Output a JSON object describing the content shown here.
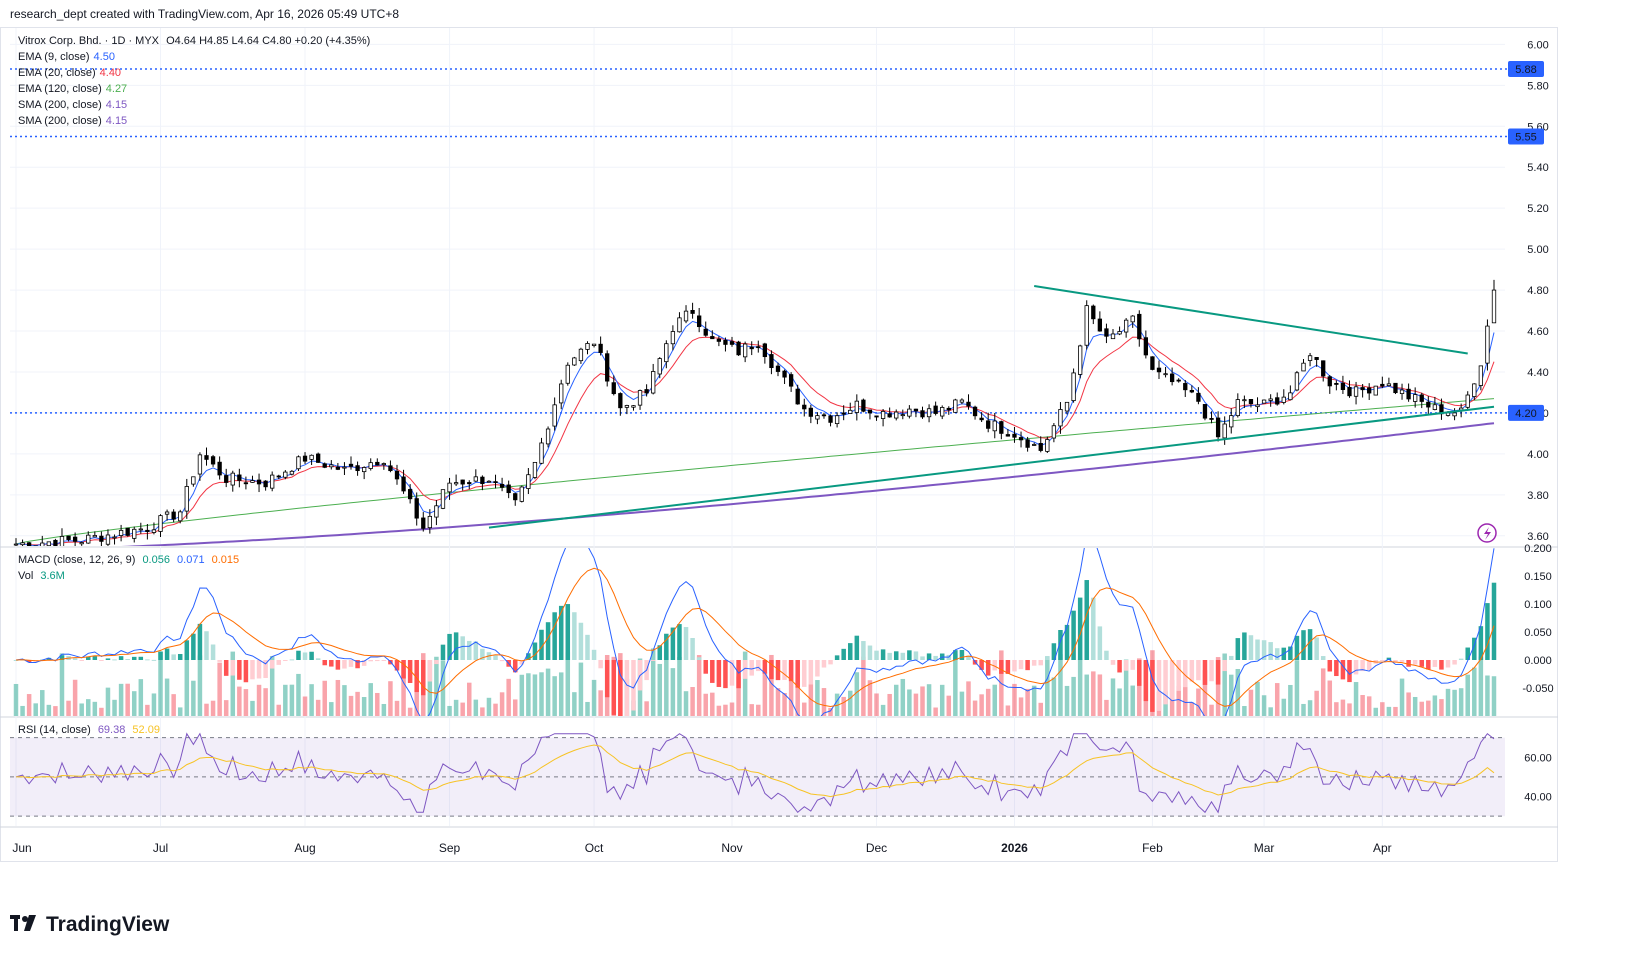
{
  "header": {
    "text": "research_dept created with TradingView.com, Apr 16, 2026 05:49 UTC+8"
  },
  "legend": {
    "symbol": "Vitrox Corp. Bhd. · 1D · MYX",
    "ohlc": "O4.64 H4.85 L4.64 C4.80 +0.20 (+4.35%)",
    "items": [
      {
        "label": "EMA (9, close)",
        "value": "4.50",
        "color": "#2962ff"
      },
      {
        "label": "EMA (20, close)",
        "value": "4.40",
        "color": "#f23645"
      },
      {
        "label": "EMA (120, close)",
        "value": "4.27",
        "color": "#4caf50"
      },
      {
        "label": "SMA (200, close)",
        "value": "4.15",
        "color": "#7e57c2"
      },
      {
        "label": "SMA (200, close)",
        "value": "4.15",
        "color": "#7e57c2"
      }
    ]
  },
  "macd_legend": {
    "label": "MACD (close, 12, 26, 9)",
    "values": [
      "0.056",
      "0.071",
      "0.015"
    ],
    "colors": [
      "#089981",
      "#2962ff",
      "#ff6d00"
    ]
  },
  "vol_legend": {
    "label": "Vol",
    "value": "3.6M"
  },
  "rsi_legend": {
    "label": "RSI (14, close)",
    "values": [
      "69.38",
      "52.09"
    ],
    "colors": [
      "#7e57c2",
      "#f7c325"
    ]
  },
  "footer": {
    "brand": "TradingView"
  },
  "price_levels": [
    {
      "value": 5.88,
      "label": "5.88"
    },
    {
      "value": 5.55,
      "label": "5.55"
    },
    {
      "value": 4.2,
      "label": "4.20"
    }
  ],
  "chart_data": [
    {
      "type": "candlestick",
      "title": "Vitrox Corp. Bhd. · 1D · MYX",
      "ylim": [
        3.55,
        6.08
      ],
      "y_ticks": [
        "6.00",
        "5.80",
        "5.60",
        "5.40",
        "5.20",
        "5.00",
        "4.80",
        "4.60",
        "4.40",
        "4.20",
        "4.00",
        "3.80",
        "3.60"
      ],
      "x_labels": [
        "Jun",
        "Jul",
        "Aug",
        "Sep",
        "Oct",
        "Nov",
        "Dec",
        "2026",
        "Feb",
        "Mar",
        "Apr"
      ],
      "anchors": [
        [
          0,
          3.56
        ],
        [
          10,
          3.58
        ],
        [
          20,
          3.64
        ],
        [
          25,
          3.72
        ],
        [
          28,
          4.0
        ],
        [
          32,
          3.88
        ],
        [
          38,
          3.86
        ],
        [
          44,
          3.98
        ],
        [
          50,
          3.92
        ],
        [
          56,
          3.98
        ],
        [
          62,
          3.64
        ],
        [
          66,
          3.86
        ],
        [
          72,
          3.88
        ],
        [
          76,
          3.75
        ],
        [
          79,
          3.95
        ],
        [
          84,
          4.45
        ],
        [
          88,
          4.55
        ],
        [
          92,
          4.22
        ],
        [
          96,
          4.3
        ],
        [
          100,
          4.62
        ],
        [
          103,
          4.7
        ],
        [
          106,
          4.55
        ],
        [
          110,
          4.5
        ],
        [
          113,
          4.55
        ],
        [
          116,
          4.4
        ],
        [
          120,
          4.22
        ],
        [
          124,
          4.18
        ],
        [
          128,
          4.24
        ],
        [
          132,
          4.2
        ],
        [
          136,
          4.22
        ],
        [
          140,
          4.2
        ],
        [
          144,
          4.25
        ],
        [
          148,
          4.15
        ],
        [
          152,
          4.1
        ],
        [
          156,
          4.02
        ],
        [
          160,
          4.25
        ],
        [
          163,
          4.7
        ],
        [
          166,
          4.55
        ],
        [
          170,
          4.65
        ],
        [
          173,
          4.4
        ],
        [
          176,
          4.35
        ],
        [
          180,
          4.26
        ],
        [
          183,
          4.08
        ],
        [
          186,
          4.25
        ],
        [
          190,
          4.24
        ],
        [
          194,
          4.3
        ],
        [
          197,
          4.5
        ],
        [
          200,
          4.35
        ],
        [
          204,
          4.3
        ],
        [
          208,
          4.35
        ],
        [
          212,
          4.28
        ],
        [
          216,
          4.22
        ],
        [
          220,
          4.2
        ],
        [
          223,
          4.45
        ],
        [
          225,
          4.8
        ]
      ],
      "lines": [
        {
          "name": "EMA (9, close)",
          "value": 4.5,
          "color": "#2962ff"
        },
        {
          "name": "EMA (20, close)",
          "value": 4.4,
          "color": "#f23645"
        },
        {
          "name": "EMA (120, close)",
          "value": 4.27,
          "color": "#4caf50"
        },
        {
          "name": "SMA (200, close)",
          "value": 4.15,
          "color": "#7e57c2"
        }
      ],
      "trendlines": [
        {
          "from": [
            72,
            3.64
          ],
          "to": [
            225,
            4.23
          ],
          "color": "#089981"
        },
        {
          "from": [
            155,
            4.82
          ],
          "to": [
            221,
            4.49
          ],
          "color": "#089981"
        }
      ],
      "last": {
        "open": 4.64,
        "high": 4.85,
        "low": 4.64,
        "close": 4.8
      }
    },
    {
      "type": "bar",
      "title": "MACD (close, 12, 26, 9)",
      "ylim": [
        -0.1,
        0.2
      ],
      "y_ticks": [
        "0.200",
        "0.150",
        "0.100",
        "0.050",
        "0.000",
        "-0.050"
      ],
      "last": {
        "histogram": 0.056,
        "macd": 0.071,
        "signal": 0.015
      },
      "volume_last": "3.6M"
    },
    {
      "type": "line",
      "title": "RSI (14, close)",
      "ylim": [
        25,
        80
      ],
      "y_ticks": [
        "60.00",
        "40.00"
      ],
      "bands": [
        30,
        50,
        70
      ],
      "last": {
        "rsi": 69.38,
        "ma": 52.09
      }
    }
  ]
}
